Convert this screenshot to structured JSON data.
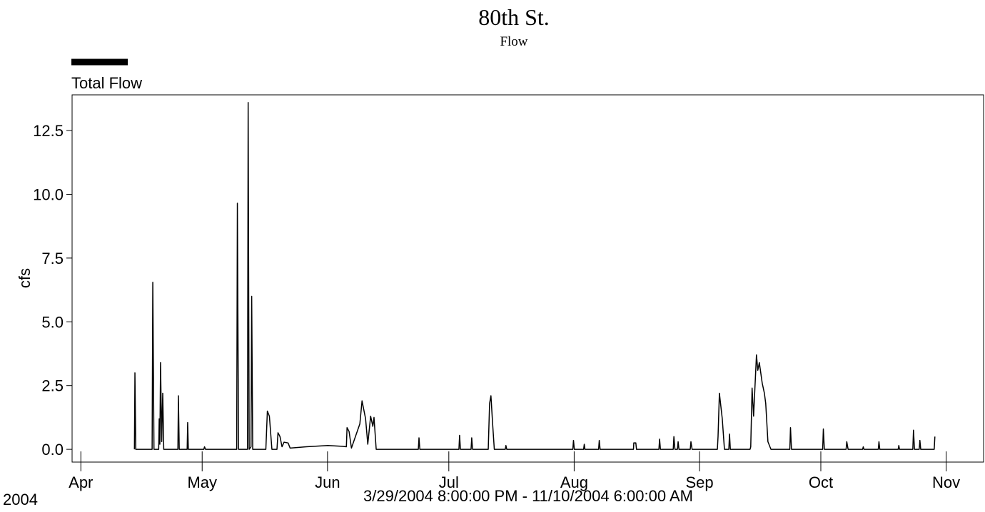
{
  "chart_data": {
    "type": "line",
    "title": "80th St.",
    "subtitle": "Flow",
    "ylabel": "cfs",
    "xlabel": "3/29/2004 8:00:00 PM - 11/10/2004 6:00:00 AM",
    "year_label": "2004",
    "xlim": [
      "2004-03-29T20:00",
      "2004-11-10T06:00"
    ],
    "xticks": [
      {
        "value": "2004-04-01T00:00",
        "label": "Apr"
      },
      {
        "value": "2004-05-01T00:00",
        "label": "May"
      },
      {
        "value": "2004-06-01T00:00",
        "label": "Jun"
      },
      {
        "value": "2004-07-01T00:00",
        "label": "Jul"
      },
      {
        "value": "2004-08-01T00:00",
        "label": "Aug"
      },
      {
        "value": "2004-09-01T00:00",
        "label": "Sep"
      },
      {
        "value": "2004-10-01T00:00",
        "label": "Oct"
      },
      {
        "value": "2004-11-01T00:00",
        "label": "Nov"
      }
    ],
    "ylim": [
      -0.5,
      13.9
    ],
    "yticks": [
      {
        "value": 0,
        "label": "0.0"
      },
      {
        "value": 2.5,
        "label": "2.5"
      },
      {
        "value": 5,
        "label": "5.0"
      },
      {
        "value": 7.5,
        "label": "7.5"
      },
      {
        "value": 10,
        "label": "10.0"
      },
      {
        "value": 12.5,
        "label": "12.5"
      }
    ],
    "grid": false,
    "x": [
      "2004-04-14T06:00",
      "2004-04-14T09:00",
      "2004-04-14T14:00",
      "2004-04-18T15:00",
      "2004-04-18T19:00",
      "2004-04-19T02:00",
      "2004-04-20T06:00",
      "2004-04-20T09:00",
      "2004-04-20T13:00",
      "2004-04-20T17:00",
      "2004-04-21T00:00",
      "2004-04-21T06:00",
      "2004-04-21T12:00",
      "2004-04-25T00:00",
      "2004-04-25T03:00",
      "2004-04-25T08:00",
      "2004-04-27T07:00",
      "2004-04-27T10:00",
      "2004-04-27T14:00",
      "2004-05-01T10:00",
      "2004-05-01T14:00",
      "2004-05-01T20:00",
      "2004-05-09T13:00",
      "2004-05-09T17:00",
      "2004-05-10T00:00",
      "2004-05-12T05:00",
      "2004-05-12T09:00",
      "2004-05-12T15:00",
      "2004-05-13T02:00",
      "2004-05-13T06:00",
      "2004-05-13T12:00",
      "2004-05-16T18:00",
      "2004-05-17T03:00",
      "2004-05-17T15:00",
      "2004-05-18T06:00",
      "2004-05-19T12:00",
      "2004-05-19T18:00",
      "2004-05-20T06:00",
      "2004-05-20T18:00",
      "2004-05-21T06:00",
      "2004-05-22T06:00",
      "2004-05-22T18:00",
      "2004-05-26T19:00",
      "2004-06-01T02:00",
      "2004-06-04T15:00",
      "2004-06-05T16:00",
      "2004-06-05T20:00",
      "2004-06-06T08:00",
      "2004-06-06T22:00",
      "2004-06-09T00:00",
      "2004-06-09T13:00",
      "2004-06-10T10:00",
      "2004-06-10T23:00",
      "2004-06-11T16:00",
      "2004-06-12T05:00",
      "2004-06-12T12:00",
      "2004-06-13T01:00",
      "2004-06-23T11:00",
      "2004-06-23T15:00",
      "2004-06-23T20:00",
      "2004-07-03T12:00",
      "2004-07-03T16:00",
      "2004-07-03T21:00",
      "2004-07-06T12:00",
      "2004-07-06T16:00",
      "2004-07-06T21:00",
      "2004-07-10T18:00",
      "2004-07-11T02:00",
      "2004-07-11T10:00",
      "2004-07-11T20:00",
      "2004-07-12T06:00",
      "2004-07-14T23:00",
      "2004-07-15T03:00",
      "2004-07-15T08:00",
      "2004-07-31T16:00",
      "2004-07-31T20:00",
      "2004-08-01T01:00",
      "2004-08-03T08:00",
      "2004-08-03T12:00",
      "2004-08-03T16:00",
      "2004-08-07T01:00",
      "2004-08-07T05:00",
      "2004-08-07T10:00",
      "2004-08-15T16:00",
      "2004-08-15T18:00",
      "2004-08-16T06:00",
      "2004-08-16T10:00",
      "2004-08-21T23:00",
      "2004-08-22T03:00",
      "2004-08-22T08:00",
      "2004-08-25T12:00",
      "2004-08-25T16:00",
      "2004-08-25T22:00",
      "2004-08-26T13:00",
      "2004-08-26T17:00",
      "2004-08-26T22:00",
      "2004-08-29T17:00",
      "2004-08-29T21:00",
      "2004-08-30T04:00",
      "2004-09-05T10:00",
      "2004-09-05T14:00",
      "2004-09-05T22:00",
      "2004-09-06T15:00",
      "2004-09-07T04:00",
      "2004-09-08T06:00",
      "2004-09-08T10:00",
      "2004-09-08T15:00",
      "2004-09-13T12:00",
      "2004-09-13T16:00",
      "2004-09-14T00:00",
      "2004-09-14T09:00",
      "2004-09-15T02:00",
      "2004-09-15T10:00",
      "2004-09-15T19:00",
      "2004-09-16T12:00",
      "2004-09-17T01:00",
      "2004-09-17T09:00",
      "2004-09-17T22:00",
      "2004-09-18T16:00",
      "2004-09-23T08:00",
      "2004-09-23T12:00",
      "2004-09-23T18:00",
      "2004-10-01T11:00",
      "2004-10-01T15:00",
      "2004-10-01T21:00",
      "2004-10-07T06:00",
      "2004-10-07T10:00",
      "2004-10-07T18:00",
      "2004-10-11T08:00",
      "2004-10-11T12:00",
      "2004-10-11T16:00",
      "2004-10-15T05:00",
      "2004-10-15T09:00",
      "2004-10-15T14:00",
      "2004-10-20T03:00",
      "2004-10-20T07:00",
      "2004-10-20T11:00",
      "2004-10-23T18:00",
      "2004-10-23T22:00",
      "2004-10-24T04:00",
      "2004-10-25T08:00",
      "2004-10-25T12:00",
      "2004-10-25T17:00",
      "2004-10-29T01:00",
      "2004-10-29T05:00"
    ],
    "series": [
      {
        "name": "Total Flow",
        "color": "#000000",
        "values": [
          0,
          3.0,
          0,
          0,
          6.55,
          0,
          0,
          1.2,
          0.2,
          3.4,
          0.3,
          2.2,
          0,
          0,
          2.1,
          0,
          0,
          1.05,
          0,
          0,
          0.1,
          0,
          0,
          9.65,
          0,
          0,
          13.6,
          0,
          0.1,
          6.0,
          0,
          0,
          1.5,
          1.3,
          0,
          0,
          0.65,
          0.5,
          0.1,
          0.28,
          0.25,
          0.05,
          0.1,
          0.15,
          0.12,
          0.1,
          0.85,
          0.7,
          0.05,
          1.0,
          1.9,
          1.2,
          0.2,
          1.3,
          0.9,
          1.25,
          0,
          0,
          0.45,
          0,
          0,
          0.55,
          0,
          0,
          0.45,
          0,
          0,
          1.8,
          2.1,
          1.0,
          0,
          0,
          0.15,
          0,
          0,
          0.35,
          0,
          0,
          0.2,
          0,
          0,
          0.35,
          0,
          0,
          0.25,
          0.25,
          0,
          0,
          0.4,
          0,
          0,
          0.5,
          0,
          0,
          0.3,
          0,
          0,
          0.3,
          0,
          0,
          0.5,
          2.2,
          1.2,
          0,
          0,
          0.6,
          0,
          0,
          0.1,
          2.4,
          1.3,
          3.7,
          3.1,
          3.4,
          2.6,
          2.2,
          1.8,
          0.3,
          0,
          0,
          0.85,
          0,
          0,
          0.8,
          0,
          0,
          0.3,
          0,
          0,
          0.1,
          0,
          0,
          0.3,
          0,
          0,
          0.15,
          0,
          0,
          0.75,
          0,
          0,
          0.35,
          0,
          0,
          0.5
        ]
      }
    ]
  }
}
